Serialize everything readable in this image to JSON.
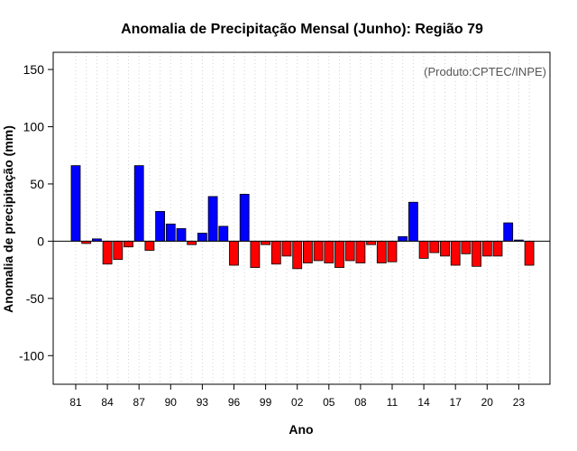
{
  "chart_data": {
    "type": "bar",
    "title": "Anomalia de Precipitação Mensal (Junho): Região 79",
    "watermark": "(Produto:CPTEC/INPE)",
    "xlabel": "Ano",
    "ylabel": "Anomalia de precipitação (mm)",
    "ylim": [
      -125,
      165
    ],
    "yticks": [
      -100,
      -50,
      0,
      50,
      100,
      150
    ],
    "grid": "vertical-dotted",
    "positive_color": "#0000ff",
    "negative_color": "#ff0000",
    "x_tick_labels": [
      "81",
      "84",
      "87",
      "90",
      "93",
      "96",
      "99",
      "02",
      "05",
      "08",
      "11",
      "14",
      "17",
      "20",
      "23"
    ],
    "categories": [
      "1981",
      "1982",
      "1983",
      "1984",
      "1985",
      "1986",
      "1987",
      "1988",
      "1989",
      "1990",
      "1991",
      "1992",
      "1993",
      "1994",
      "1995",
      "1996",
      "1997",
      "1998",
      "1999",
      "2000",
      "2001",
      "2002",
      "2003",
      "2004",
      "2005",
      "2006",
      "2007",
      "2008",
      "2009",
      "2010",
      "2011",
      "2012",
      "2013",
      "2014",
      "2015",
      "2016",
      "2017",
      "2018",
      "2019",
      "2020",
      "2021",
      "2022",
      "2023",
      "2024"
    ],
    "values": [
      66,
      -2,
      2,
      -20,
      -16,
      -5,
      66,
      -8,
      26,
      15,
      11,
      -3,
      7,
      39,
      13,
      -21,
      41,
      -23,
      -3,
      -20,
      -13,
      -24,
      -19,
      -17,
      -19,
      -23,
      -17,
      -19,
      -3,
      -19,
      -18,
      4,
      34,
      -15,
      -10,
      -13,
      -21,
      -11,
      -22,
      -13,
      -13,
      16,
      1,
      -21
    ]
  }
}
